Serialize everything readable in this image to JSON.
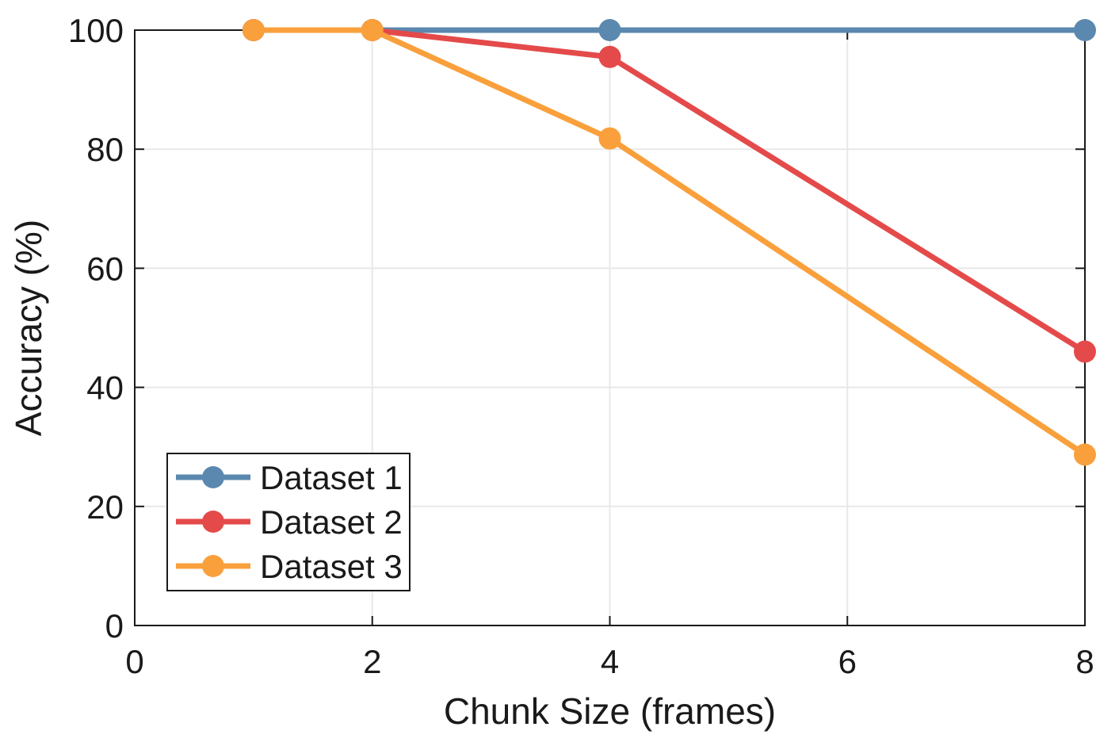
{
  "figure": {
    "background": "#ffffff"
  },
  "chart_data": {
    "type": "line",
    "title": "",
    "xlabel": "Chunk Size (frames)",
    "ylabel": "Accuracy (%)",
    "x": [
      1,
      2,
      4,
      8
    ],
    "series": [
      {
        "name": "Dataset 1",
        "color": "#5B88AE",
        "values": [
          100,
          100,
          100,
          100
        ]
      },
      {
        "name": "Dataset 2",
        "color": "#E44A4A",
        "values": [
          100,
          100,
          95.5,
          46
        ]
      },
      {
        "name": "Dataset 3",
        "color": "#F9A03C",
        "values": [
          100,
          100,
          81.8,
          28.7
        ]
      }
    ],
    "xlim": [
      0,
      8
    ],
    "ylim": [
      0,
      100
    ],
    "xticks": [
      0,
      2,
      4,
      6,
      8
    ],
    "yticks": [
      0,
      20,
      40,
      60,
      80,
      100
    ],
    "grid": true,
    "grid_color": "#E8E8E8",
    "axis_color": "#1A1A1A",
    "background_color": "#FFFFFF",
    "legend": {
      "position": "lower-left",
      "border_color": "#1A1A1A",
      "labels": [
        "Dataset 1",
        "Dataset 2",
        "Dataset 3"
      ]
    }
  }
}
